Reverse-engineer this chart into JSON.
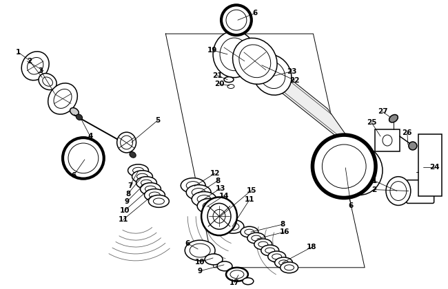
{
  "bg_color": "#ffffff",
  "line_color": "#000000",
  "fig_width": 6.5,
  "fig_height": 4.2,
  "dpi": 100,
  "label_fontsize": 7.5
}
